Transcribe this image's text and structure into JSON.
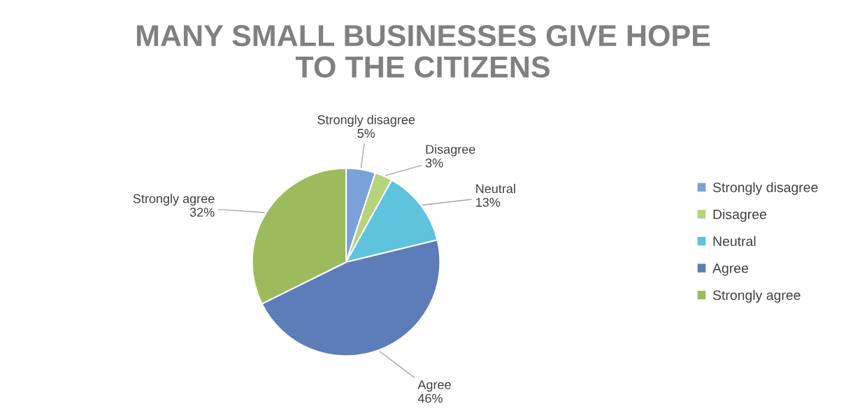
{
  "chart_data": {
    "type": "pie",
    "title": "MANY SMALL BUSINESSES GIVE HOPE\nTO THE CITIZENS",
    "categories": [
      "Strongly disagree",
      "Disagree",
      "Neutral",
      "Agree",
      "Strongly agree"
    ],
    "values": [
      5,
      3,
      13,
      46,
      32
    ],
    "colors": [
      "#7ba1d9",
      "#b5d47c",
      "#5ec3dc",
      "#5d7db9",
      "#9cbb5c"
    ],
    "value_labels": [
      "5%",
      "3%",
      "13%",
      "46%",
      "32%"
    ],
    "legend": "right"
  }
}
